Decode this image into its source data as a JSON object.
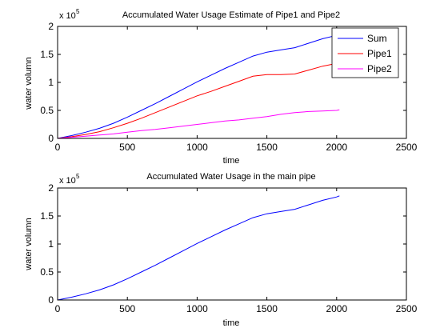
{
  "figure": {
    "background": "#ffffff"
  },
  "chart_data": [
    {
      "type": "line",
      "title": "Accumulated Water Usage Estimate of Pipe1 and Pipe2",
      "xlabel": "time",
      "ylabel": "water volumn",
      "y_exponent_label": "x 10",
      "y_exponent": "5",
      "xlim": [
        0,
        2500
      ],
      "ylim": [
        0,
        2
      ],
      "xticks": [
        0,
        500,
        1000,
        1500,
        2000,
        2500
      ],
      "yticks": [
        0,
        0.5,
        1,
        1.5,
        2
      ],
      "ytick_labels": [
        "0",
        "0.5",
        "1",
        "1.5",
        "2"
      ],
      "y_unit_scale": 100000,
      "grid": false,
      "legend_position": "top-right",
      "series": [
        {
          "name": "Sum",
          "color": "#0000ff",
          "x": [
            0,
            100,
            200,
            300,
            400,
            500,
            600,
            700,
            800,
            900,
            1000,
            1100,
            1200,
            1300,
            1400,
            1500,
            1600,
            1700,
            1800,
            1900,
            2000,
            2020
          ],
          "y": [
            0,
            0.05,
            0.11,
            0.18,
            0.27,
            0.38,
            0.5,
            0.62,
            0.75,
            0.88,
            1.01,
            1.13,
            1.25,
            1.36,
            1.47,
            1.54,
            1.58,
            1.62,
            1.7,
            1.78,
            1.84,
            1.86
          ]
        },
        {
          "name": "Pipe1",
          "color": "#ff0000",
          "x": [
            0,
            100,
            200,
            300,
            400,
            500,
            600,
            700,
            800,
            900,
            1000,
            1100,
            1200,
            1300,
            1400,
            1500,
            1600,
            1700,
            1800,
            1900,
            2000,
            2020
          ],
          "y": [
            0,
            0.03,
            0.07,
            0.12,
            0.19,
            0.27,
            0.36,
            0.46,
            0.56,
            0.66,
            0.76,
            0.84,
            0.93,
            1.02,
            1.11,
            1.14,
            1.14,
            1.15,
            1.22,
            1.29,
            1.34,
            1.35
          ]
        },
        {
          "name": "Pipe2",
          "color": "#ff00ff",
          "x": [
            0,
            100,
            200,
            300,
            400,
            500,
            600,
            700,
            800,
            900,
            1000,
            1100,
            1200,
            1300,
            1400,
            1500,
            1600,
            1700,
            1800,
            1900,
            2000,
            2020
          ],
          "y": [
            0,
            0.02,
            0.04,
            0.06,
            0.08,
            0.11,
            0.14,
            0.16,
            0.19,
            0.22,
            0.25,
            0.28,
            0.31,
            0.33,
            0.36,
            0.39,
            0.43,
            0.46,
            0.48,
            0.49,
            0.5,
            0.51
          ]
        }
      ]
    },
    {
      "type": "line",
      "title": "Accumulated Water Usage in the main pipe",
      "xlabel": "time",
      "ylabel": "water volumn",
      "y_exponent_label": "x 10",
      "y_exponent": "5",
      "xlim": [
        0,
        2500
      ],
      "ylim": [
        0,
        2
      ],
      "xticks": [
        0,
        500,
        1000,
        1500,
        2000,
        2500
      ],
      "yticks": [
        0,
        0.5,
        1,
        1.5,
        2
      ],
      "ytick_labels": [
        "0",
        "0.5",
        "1",
        "1.5",
        "2"
      ],
      "y_unit_scale": 100000,
      "grid": false,
      "series": [
        {
          "color": "#0000ff",
          "x": [
            0,
            100,
            200,
            300,
            400,
            500,
            600,
            700,
            800,
            900,
            1000,
            1100,
            1200,
            1300,
            1400,
            1500,
            1600,
            1700,
            1800,
            1900,
            2000,
            2020
          ],
          "y": [
            0,
            0.05,
            0.11,
            0.18,
            0.27,
            0.38,
            0.5,
            0.62,
            0.75,
            0.88,
            1.01,
            1.13,
            1.25,
            1.36,
            1.47,
            1.54,
            1.58,
            1.62,
            1.7,
            1.78,
            1.84,
            1.86
          ]
        }
      ]
    }
  ]
}
